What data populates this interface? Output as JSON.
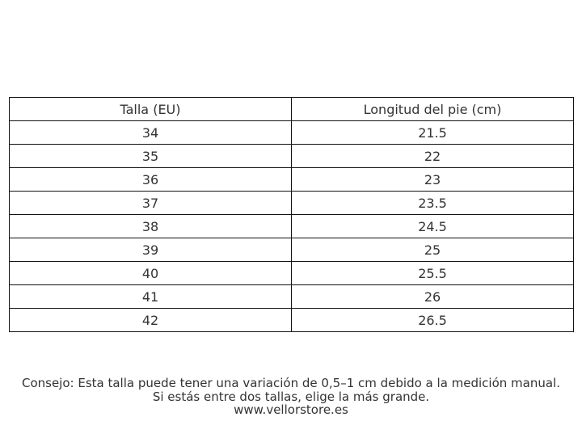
{
  "table": {
    "header": [
      "Talla (EU)",
      "Longitud del pie (cm)"
    ],
    "rows": [
      [
        "34",
        "21.5"
      ],
      [
        "35",
        "22"
      ],
      [
        "36",
        "23"
      ],
      [
        "37",
        "23.5"
      ],
      [
        "38",
        "24.5"
      ],
      [
        "39",
        "25"
      ],
      [
        "40",
        "25.5"
      ],
      [
        "41",
        "26"
      ],
      [
        "42",
        "26.5"
      ]
    ]
  },
  "footer": [
    "Consejo: Esta talla puede tener una variación de 0,5–1 cm debido a la medición manual.",
    "Si estás entre dos tallas, elige la más grande.",
    "www.vellorstore.es"
  ]
}
